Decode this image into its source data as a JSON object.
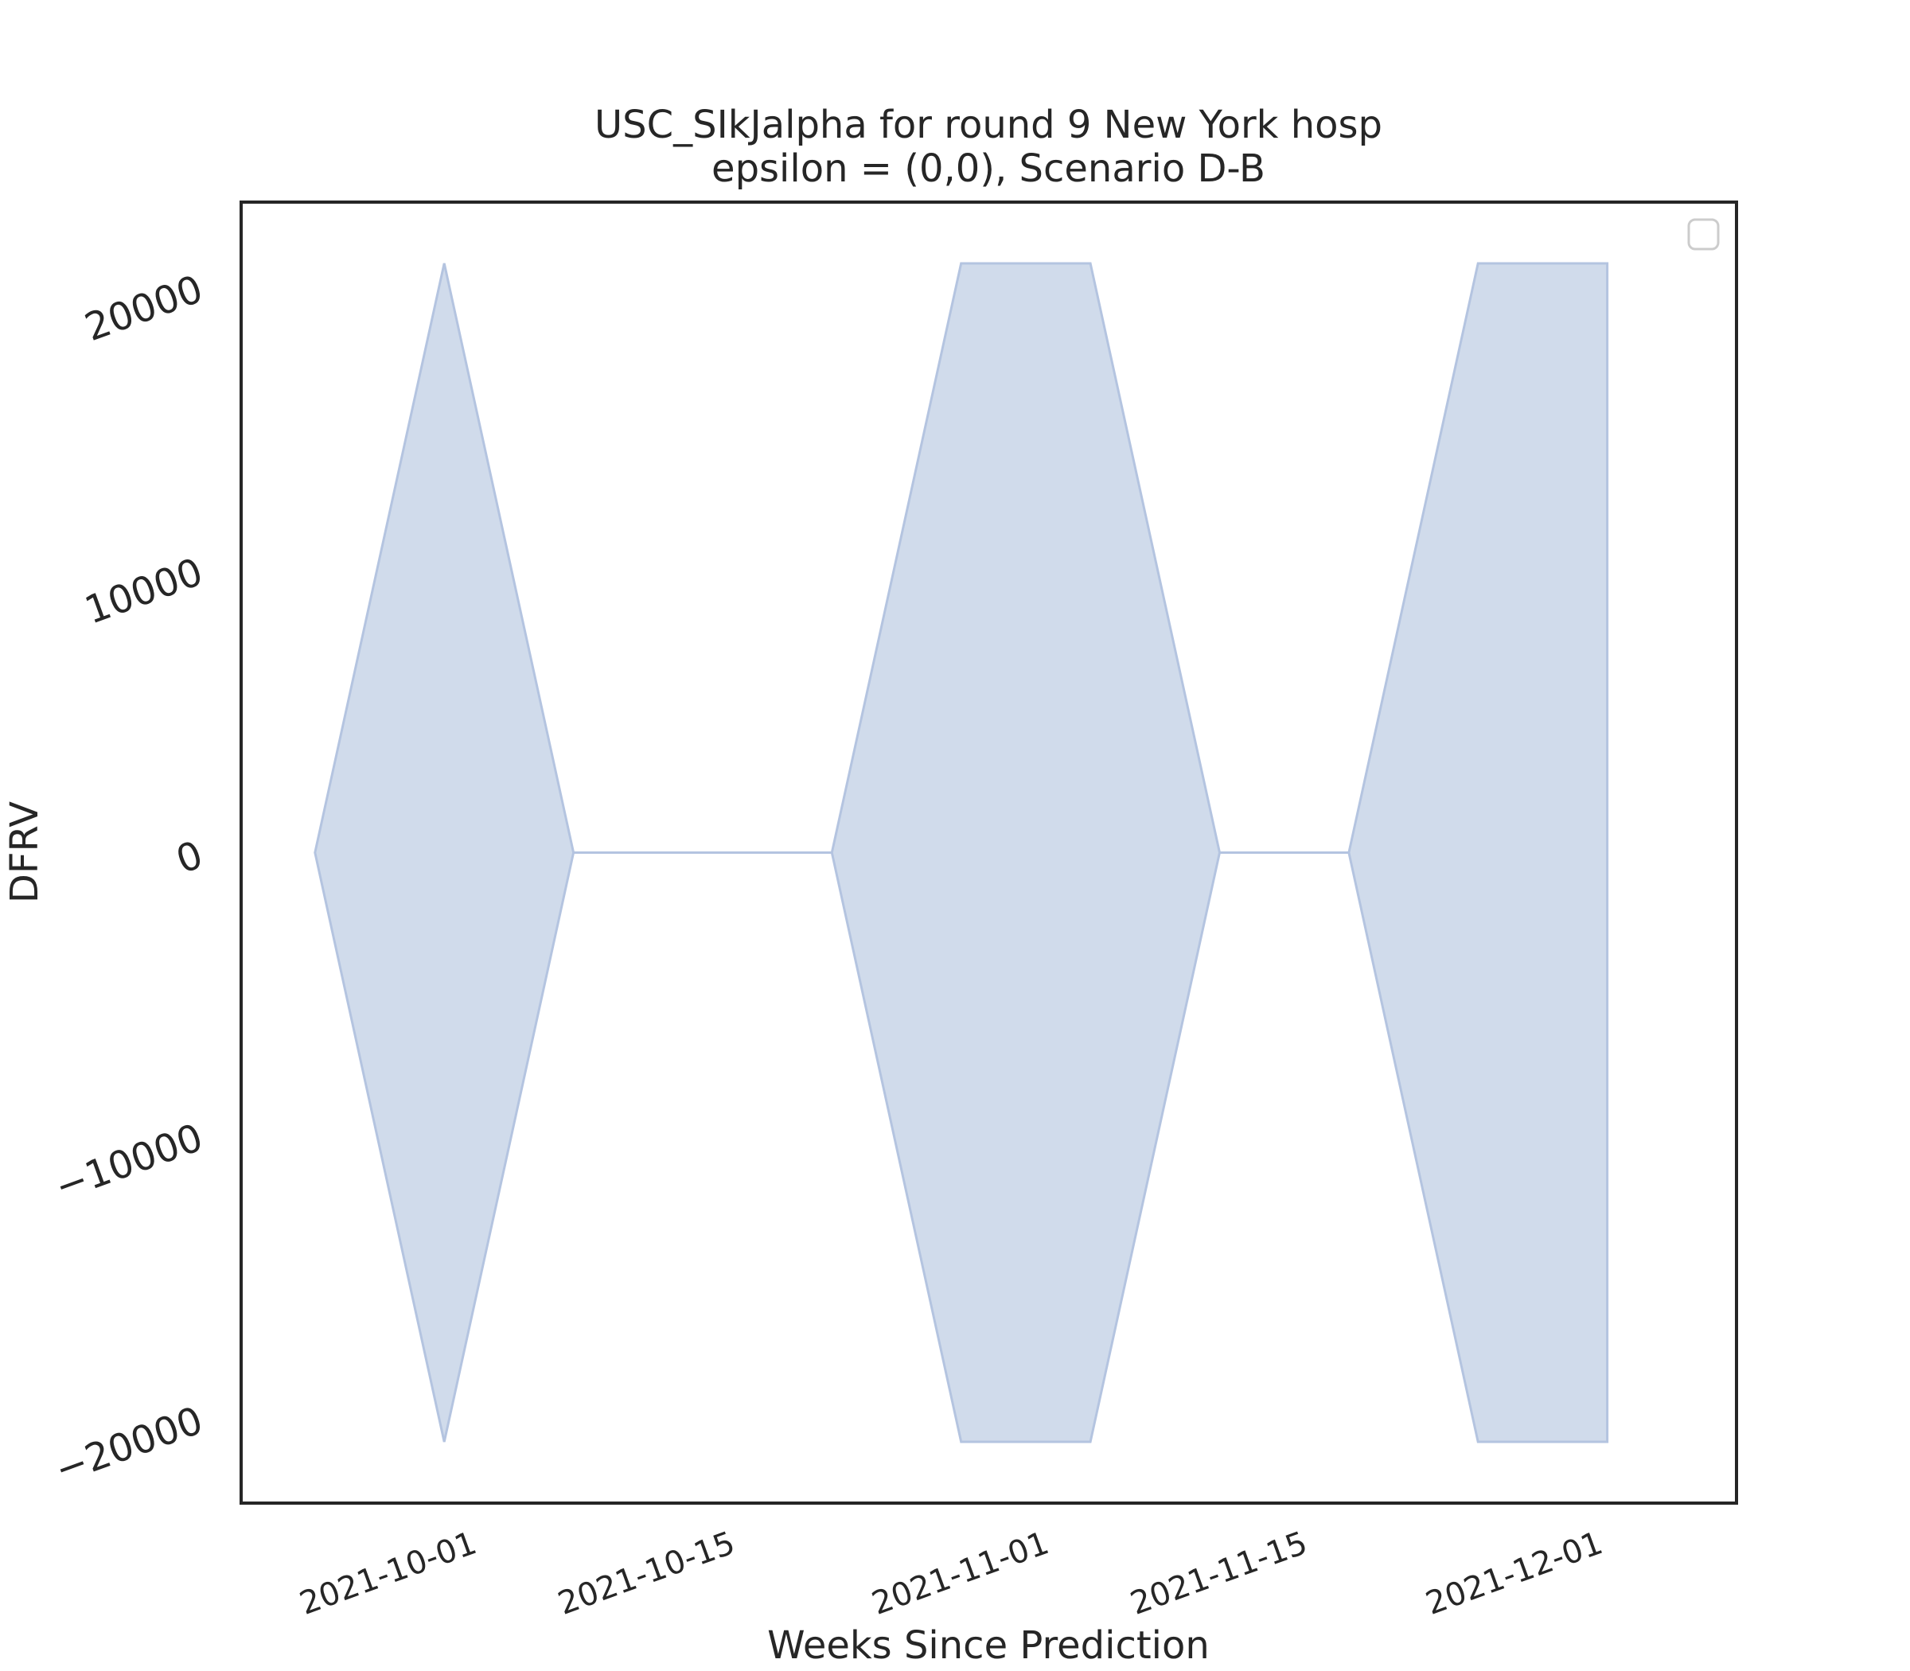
{
  "chart_data": {
    "type": "area",
    "title": "USC_SIkJalpha for round 9 New York hosp",
    "subtitle": "epsilon = (0,0), Scenario D-B",
    "xlabel": "Weeks Since Prediction",
    "ylabel": "DFRV",
    "x_tick_labels": [
      "2021-10-01",
      "2021-10-15",
      "2021-11-01",
      "2021-11-15",
      "2021-12-01"
    ],
    "y_tick_labels": [
      "−20000",
      "−10000",
      "0",
      "10000",
      "20000"
    ],
    "y_ticks": [
      -20000,
      -10000,
      0,
      10000,
      20000
    ],
    "ylim": [
      -23000,
      23000
    ],
    "xlim": [
      "2021-09-19",
      "2021-12-09"
    ],
    "x": [
      "2021-09-23",
      "2021-09-30",
      "2021-10-07",
      "2021-10-14",
      "2021-10-21",
      "2021-10-28",
      "2021-11-04",
      "2021-11-11",
      "2021-11-18",
      "2021-11-25",
      "2021-12-02"
    ],
    "upper": [
      0,
      20833,
      0,
      0,
      0,
      20833,
      20833,
      0,
      0,
      20833,
      20833
    ],
    "lower": [
      0,
      -20833,
      0,
      0,
      0,
      -20833,
      -20833,
      0,
      0,
      -20833,
      -20833
    ],
    "legend": {
      "position": "top-right",
      "entries": []
    },
    "grid": false
  },
  "colors": {
    "fill": "#d0dbeb",
    "edge": "#b4c4e0",
    "axes": "#262626",
    "text": "#262626"
  }
}
